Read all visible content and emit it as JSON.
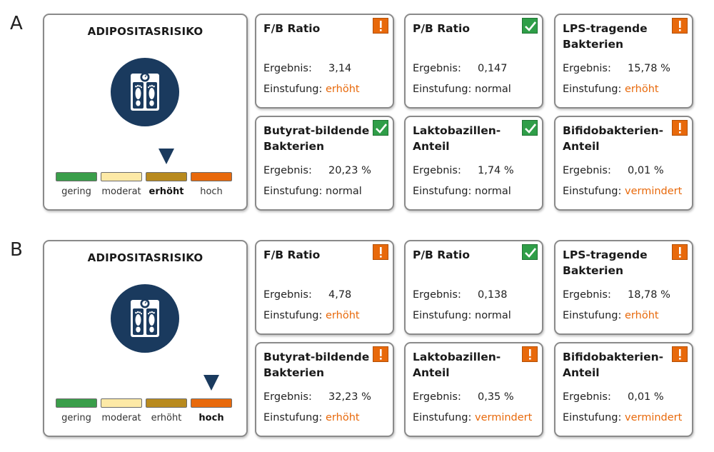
{
  "panels": [
    {
      "label": "A",
      "risk": {
        "title": "ADIPOSITASRISIKO",
        "scale": [
          "gering",
          "moderat",
          "erhöht",
          "hoch"
        ],
        "active_level": "erhöht",
        "icon": "scale-icon"
      },
      "cards": [
        {
          "title": "F/B Ratio",
          "result_label": "Ergebnis:",
          "result": "3,14",
          "class_label": "Einstufung:",
          "classification": "erhöht",
          "badge": "warning-icon"
        },
        {
          "title": "P/B Ratio",
          "result_label": "Ergebnis:",
          "result": "0,147",
          "class_label": "Einstufung:",
          "classification": "normal",
          "badge": "check-icon"
        },
        {
          "title": "LPS-tragende\nBakterien",
          "result_label": "Ergebnis:",
          "result": "15,78 %",
          "class_label": "Einstufung:",
          "classification": "erhöht",
          "badge": "warning-icon"
        },
        {
          "title": "Butyrat-bildende\nBakterien",
          "result_label": "Ergebnis:",
          "result": "20,23 %",
          "class_label": "Einstufung:",
          "classification": "normal",
          "badge": "check-icon"
        },
        {
          "title": "Laktobazillen-\nAnteil",
          "result_label": "Ergebnis:",
          "result": "1,74 %",
          "class_label": "Einstufung:",
          "classification": "normal",
          "badge": "check-icon"
        },
        {
          "title": "Bifidobakterien-\nAnteil",
          "result_label": "Ergebnis:",
          "result": "0,01 %",
          "class_label": "Einstufung:",
          "classification": "vermindert",
          "badge": "warning-icon"
        }
      ]
    },
    {
      "label": "B",
      "risk": {
        "title": "ADIPOSITASRISIKO",
        "scale": [
          "gering",
          "moderat",
          "erhöht",
          "hoch"
        ],
        "active_level": "hoch",
        "icon": "scale-icon"
      },
      "cards": [
        {
          "title": "F/B Ratio",
          "result_label": "Ergebnis:",
          "result": "4,78",
          "class_label": "Einstufung:",
          "classification": "erhöht",
          "badge": "warning-icon"
        },
        {
          "title": "P/B Ratio",
          "result_label": "Ergebnis:",
          "result": "0,138",
          "class_label": "Einstufung:",
          "classification": "normal",
          "badge": "check-icon"
        },
        {
          "title": "LPS-tragende\nBakterien",
          "result_label": "Ergebnis:",
          "result": "18,78 %",
          "class_label": "Einstufung:",
          "classification": "erhöht",
          "badge": "warning-icon"
        },
        {
          "title": "Butyrat-bildende\nBakterien",
          "result_label": "Ergebnis:",
          "result": "32,23 %",
          "class_label": "Einstufung:",
          "classification": "erhöht",
          "badge": "warning-icon"
        },
        {
          "title": "Laktobazillen-\nAnteil",
          "result_label": "Ergebnis:",
          "result": "0,35 %",
          "class_label": "Einstufung:",
          "classification": "vermindert",
          "badge": "warning-icon"
        },
        {
          "title": "Bifidobakterien-\nAnteil",
          "result_label": "Ergebnis:",
          "result": "0,01 %",
          "class_label": "Einstufung:",
          "classification": "vermindert",
          "badge": "warning-icon"
        }
      ]
    }
  ],
  "colors": {
    "scale": [
      "#3a9e4a",
      "#fde9a6",
      "#b88a1e",
      "#e8690b"
    ],
    "warning": "#e8690b",
    "ok": "#2f9e48",
    "icon_bg": "#1a3a5e"
  }
}
